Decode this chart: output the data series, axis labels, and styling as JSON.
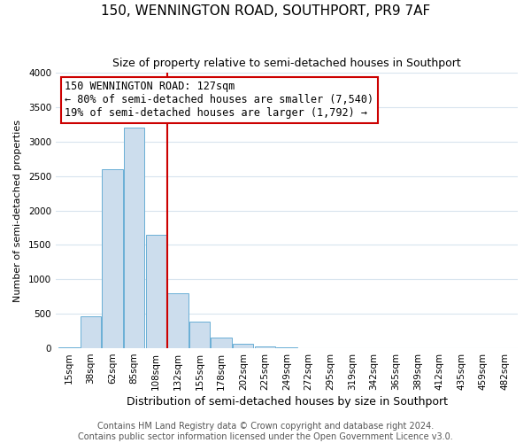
{
  "title": "150, WENNINGTON ROAD, SOUTHPORT, PR9 7AF",
  "subtitle": "Size of property relative to semi-detached houses in Southport",
  "xlabel": "Distribution of semi-detached houses by size in Southport",
  "ylabel": "Number of semi-detached properties",
  "bin_labels": [
    "15sqm",
    "38sqm",
    "62sqm",
    "85sqm",
    "108sqm",
    "132sqm",
    "155sqm",
    "178sqm",
    "202sqm",
    "225sqm",
    "249sqm",
    "272sqm",
    "295sqm",
    "319sqm",
    "342sqm",
    "365sqm",
    "389sqm",
    "412sqm",
    "435sqm",
    "459sqm",
    "482sqm"
  ],
  "bar_values": [
    20,
    460,
    2600,
    3200,
    1650,
    800,
    390,
    160,
    60,
    30,
    10,
    5,
    2,
    1,
    0,
    0,
    0,
    0,
    0,
    0,
    0
  ],
  "bar_color": "#ccdded",
  "bar_edge_color": "#6aafd6",
  "ylim": [
    0,
    4000
  ],
  "yticks": [
    0,
    500,
    1000,
    1500,
    2000,
    2500,
    3000,
    3500,
    4000
  ],
  "vline_x_index": 5,
  "vline_color": "#cc0000",
  "annotation_box_edge_color": "#cc0000",
  "annotation_title": "150 WENNINGTON ROAD: 127sqm",
  "annotation_line1": "← 80% of semi-detached houses are smaller (7,540)",
  "annotation_line2": "19% of semi-detached houses are larger (1,792) →",
  "footer_line1": "Contains HM Land Registry data © Crown copyright and database right 2024.",
  "footer_line2": "Contains public sector information licensed under the Open Government Licence v3.0.",
  "background_color": "#ffffff",
  "plot_bg_color": "#ffffff",
  "grid_color": "#d8e4ee",
  "title_fontsize": 11,
  "subtitle_fontsize": 9,
  "xlabel_fontsize": 9,
  "ylabel_fontsize": 8,
  "tick_fontsize": 7.5,
  "footer_fontsize": 7,
  "annotation_fontsize": 8.5
}
